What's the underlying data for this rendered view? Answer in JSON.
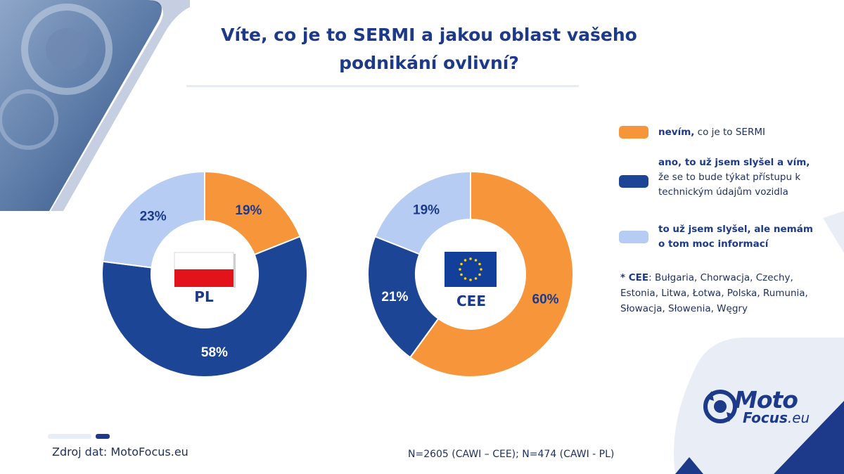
{
  "title": "Víte, co je to SERMI a jakou oblast vašeho podnikání ovlivní?",
  "colors": {
    "orange": "#f7953b",
    "dark_blue": "#1d4595",
    "light_blue": "#b6ccf2",
    "title_blue": "#1d3a8a"
  },
  "legend": [
    {
      "bold": "nevím,",
      "rest": " co je to SERMI",
      "color": "#f7953b"
    },
    {
      "bold": "ano, to už jsem slyšel a vím,",
      "rest": " že se to bude týkat přístupu k technickým údajům vozidla",
      "color": "#1d4595"
    },
    {
      "bold": "to už jsem slyšel, ale nemám o tom moc informací",
      "rest": "",
      "color": "#b6ccf2"
    }
  ],
  "note": {
    "bold": "* CEE",
    "rest": ": Bułgaria, Chorwacja, Czechy, Estonia, Litwa, Łotwa, Polska, Rumunia, Słowacja, Słowenia, Węgry"
  },
  "chart_data": [
    {
      "type": "pie",
      "center_label": "PL",
      "flag": "poland-flag",
      "slices": [
        {
          "series": "nevím, co je to SERMI",
          "value": 19,
          "label": "19%",
          "color": "#f7953b"
        },
        {
          "series": "ano, to už jsem slyšel a vím",
          "value": 58,
          "label": "58%",
          "color": "#1d4595"
        },
        {
          "series": "to už jsem slyšel, ale nemám o tom moc informací",
          "value": 23,
          "label": "23%",
          "color": "#b6ccf2"
        }
      ]
    },
    {
      "type": "pie",
      "center_label": "CEE",
      "flag": "eu-flag",
      "slices": [
        {
          "series": "nevím, co je to SERMI",
          "value": 60,
          "label": "60%",
          "color": "#f7953b"
        },
        {
          "series": "ano, to už jsem slyšel a vím",
          "value": 21,
          "label": "21%",
          "color": "#1d4595"
        },
        {
          "series": "to už jsem slyšel, ale nemám o tom moc informací",
          "value": 19,
          "label": "19%",
          "color": "#b6ccf2"
        }
      ]
    }
  ],
  "footer": {
    "source": "Zdroj dat: MotoFocus.eu",
    "sample": "N=2605 (CAWI – CEE);    N=474 (CAWI - PL)"
  },
  "logo": {
    "line1": "Moto",
    "line2_bold": "Focus",
    "line2_rest": ".eu"
  }
}
